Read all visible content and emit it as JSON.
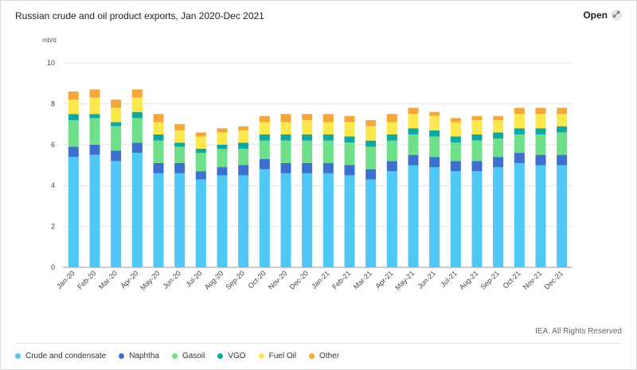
{
  "header": {
    "title": "Russian crude and oil product exports, Jan 2020-Dec 2021",
    "open_label": "Open",
    "open_icon": "expand-arrows-icon"
  },
  "footer": {
    "credit": "IEA. All Rights Reserved"
  },
  "chart_data": {
    "type": "bar",
    "stacked": true,
    "title": "Russian crude and oil product exports, Jan 2020-Dec 2021",
    "ylabel": "mb/d",
    "xlabel": "",
    "ylim": [
      0,
      10
    ],
    "yticks": [
      0,
      2,
      4,
      6,
      8,
      10
    ],
    "grid": true,
    "legend_position": "bottom",
    "categories": [
      "Jan-20",
      "Feb-20",
      "Mar-20",
      "Apr-20",
      "May-20",
      "Jun-20",
      "Jul-20",
      "Aug-20",
      "Sep-20",
      "Oct-20",
      "Nov-20",
      "Dec-20",
      "Jan-21",
      "Feb-21",
      "Mar-21",
      "Apr-21",
      "May-21",
      "Jun-21",
      "Jul-21",
      "Aug-21",
      "Sep-21",
      "Oct-21",
      "Nov-21",
      "Dec-21"
    ],
    "series": [
      {
        "name": "Crude and condensate",
        "color": "#4fc8f5",
        "values": [
          5.4,
          5.5,
          5.2,
          5.6,
          4.6,
          4.6,
          4.3,
          4.5,
          4.5,
          4.8,
          4.6,
          4.6,
          4.6,
          4.5,
          4.3,
          4.7,
          5.0,
          4.9,
          4.7,
          4.7,
          4.9,
          5.1,
          5.0,
          5.0
        ]
      },
      {
        "name": "Naphtha",
        "color": "#3f6fce",
        "values": [
          0.5,
          0.5,
          0.5,
          0.5,
          0.5,
          0.5,
          0.4,
          0.4,
          0.5,
          0.5,
          0.5,
          0.5,
          0.5,
          0.5,
          0.5,
          0.5,
          0.5,
          0.5,
          0.5,
          0.5,
          0.5,
          0.5,
          0.5,
          0.5
        ]
      },
      {
        "name": "Gasoil",
        "color": "#6ee08a",
        "values": [
          1.3,
          1.3,
          1.2,
          1.2,
          1.1,
          0.8,
          0.9,
          0.9,
          0.8,
          0.9,
          1.1,
          1.1,
          1.1,
          1.1,
          1.1,
          1.0,
          1.0,
          1.0,
          0.9,
          1.0,
          0.9,
          0.9,
          1.0,
          1.1
        ]
      },
      {
        "name": "VGO",
        "color": "#0fa8a0",
        "values": [
          0.3,
          0.2,
          0.2,
          0.3,
          0.3,
          0.2,
          0.2,
          0.2,
          0.3,
          0.3,
          0.3,
          0.3,
          0.3,
          0.3,
          0.3,
          0.3,
          0.3,
          0.3,
          0.3,
          0.3,
          0.3,
          0.3,
          0.3,
          0.3
        ]
      },
      {
        "name": "Fuel Oil",
        "color": "#fbe94d",
        "values": [
          0.7,
          0.8,
          0.7,
          0.7,
          0.6,
          0.6,
          0.6,
          0.6,
          0.6,
          0.6,
          0.6,
          0.7,
          0.6,
          0.7,
          0.7,
          0.6,
          0.7,
          0.7,
          0.7,
          0.7,
          0.6,
          0.7,
          0.7,
          0.6
        ]
      },
      {
        "name": "Other",
        "color": "#f5a83a",
        "values": [
          0.4,
          0.4,
          0.4,
          0.4,
          0.4,
          0.3,
          0.2,
          0.2,
          0.2,
          0.3,
          0.4,
          0.3,
          0.4,
          0.3,
          0.3,
          0.4,
          0.3,
          0.2,
          0.2,
          0.2,
          0.2,
          0.3,
          0.3,
          0.3
        ]
      }
    ]
  }
}
